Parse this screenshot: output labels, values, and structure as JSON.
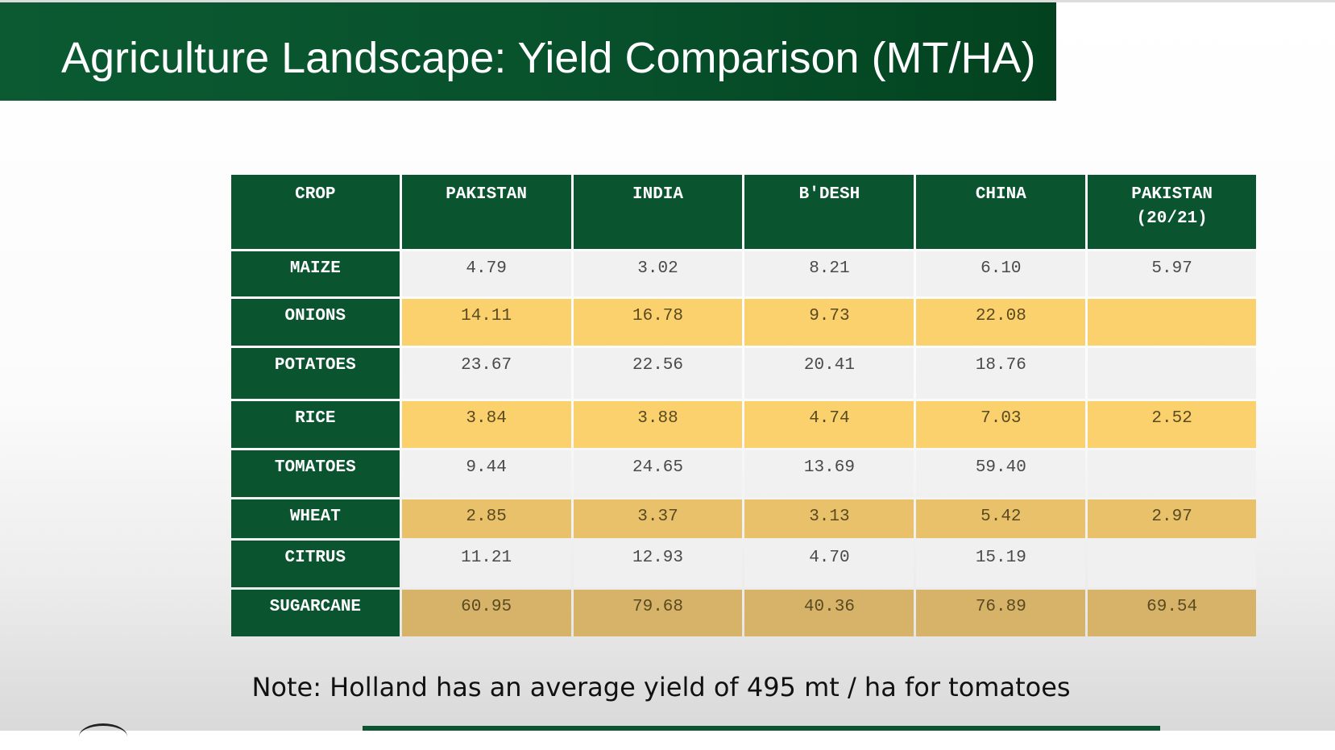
{
  "slide": {
    "title": "Agriculture Landscape: Yield Comparison (MT/HA)",
    "note": "Note: Holland has an average yield of 495 mt / ha for tomatoes"
  },
  "table": {
    "headers": [
      "CROP",
      "PAKISTAN",
      "INDIA",
      "B'DESH",
      "CHINA",
      "PAKISTAN\n(20/21)"
    ],
    "rows": [
      {
        "crop": "MAIZE",
        "values": [
          "4.79",
          "3.02",
          "8.21",
          "6.10",
          "5.97"
        ]
      },
      {
        "crop": "ONIONS",
        "values": [
          "14.11",
          "16.78",
          "9.73",
          "22.08",
          ""
        ]
      },
      {
        "crop": "POTATOES",
        "values": [
          "23.67",
          "22.56",
          "20.41",
          "18.76",
          ""
        ]
      },
      {
        "crop": "RICE",
        "values": [
          "3.84",
          "3.88",
          "4.74",
          "7.03",
          "2.52"
        ]
      },
      {
        "crop": "TOMATOES",
        "values": [
          "9.44",
          "24.65",
          "13.69",
          "59.40",
          ""
        ]
      },
      {
        "crop": "WHEAT",
        "values": [
          "2.85",
          "3.37",
          "3.13",
          "5.42",
          "2.97"
        ]
      },
      {
        "crop": "CITRUS",
        "values": [
          "11.21",
          "12.93",
          "4.70",
          "15.19",
          ""
        ]
      },
      {
        "crop": "SUGARCANE",
        "values": [
          "60.95",
          "79.68",
          "40.36",
          "76.89",
          "69.54"
        ]
      }
    ]
  },
  "colors": {
    "brand_green": "#0a5530",
    "row_gold": "#fbd16e",
    "row_light": "#f0f0f0"
  }
}
